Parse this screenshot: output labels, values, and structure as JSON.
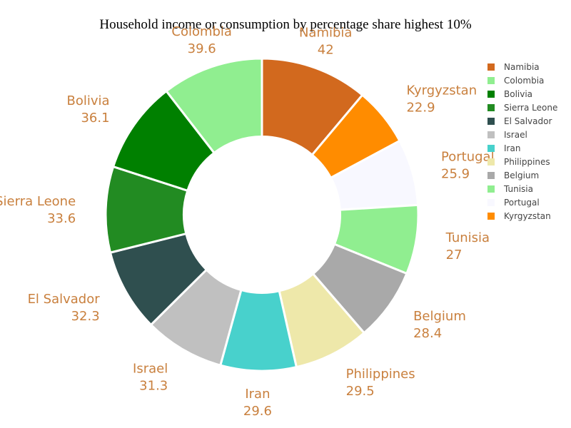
{
  "chart_data": {
    "type": "pie",
    "hole": 0.5,
    "title": "Household income or consumption by percentage share highest 10%",
    "label_color": "#c9803e",
    "slices": [
      {
        "name": "Namibia",
        "value": 42,
        "color": "#d2691e"
      },
      {
        "name": "Kyrgyzstan",
        "value": 22.9,
        "color": "#ff8c00"
      },
      {
        "name": "Portugal",
        "value": 25.9,
        "color": "#f8f8ff"
      },
      {
        "name": "Tunisia",
        "value": 27,
        "color": "#90ee90"
      },
      {
        "name": "Belgium",
        "value": 28.4,
        "color": "#a9a9a9"
      },
      {
        "name": "Philippines",
        "value": 29.5,
        "color": "#eee8aa"
      },
      {
        "name": "Iran",
        "value": 29.6,
        "color": "#48d1cc"
      },
      {
        "name": "Israel",
        "value": 31.3,
        "color": "#c0c0c0"
      },
      {
        "name": "El Salvador",
        "value": 32.3,
        "color": "#2f4f4f"
      },
      {
        "name": "Sierra Leone",
        "value": 33.6,
        "color": "#228b22"
      },
      {
        "name": "Bolivia",
        "value": 36.1,
        "color": "#008000"
      },
      {
        "name": "Colombia",
        "value": 39.6,
        "color": "#90ee90"
      }
    ],
    "legend": {
      "placement": "right",
      "order": [
        "Namibia",
        "Colombia",
        "Bolivia",
        "Sierra Leone",
        "El Salvador",
        "Israel",
        "Iran",
        "Philippines",
        "Belgium",
        "Tunisia",
        "Portugal",
        "Kyrgyzstan"
      ]
    }
  }
}
